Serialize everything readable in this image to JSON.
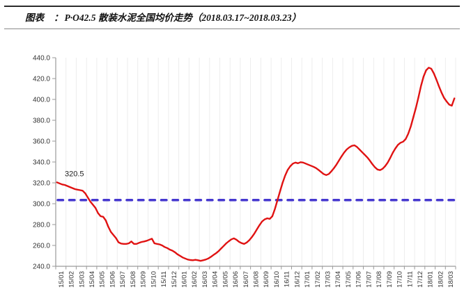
{
  "header": {
    "title_label": "图表",
    "title_separator": "：",
    "title_text": "P·O42.5 散装水泥全国均价走势（2018.03.17~2018.03.23）"
  },
  "chart_data": {
    "type": "line",
    "title": "P·O42.5 散装水泥全国均价走势（2018.03.17~2018.03.23）",
    "xlabel": "",
    "ylabel": "",
    "ylim": [
      240,
      440
    ],
    "ytick_step": 20,
    "ytick_decimals": 1,
    "grid": "vertical-faint",
    "legend": "none",
    "x_categories": [
      "15/01",
      "15/02",
      "15/03",
      "15/04",
      "15/05",
      "15/06",
      "15/07",
      "15/08",
      "15/09",
      "15/10",
      "15/11",
      "15/12",
      "16/01",
      "16/02",
      "16/03",
      "16/04",
      "16/05",
      "16/06",
      "16/07",
      "16/08",
      "16/09",
      "16/10",
      "16/11",
      "16/12",
      "17/01",
      "17/02",
      "17/03",
      "17/04",
      "17/05",
      "17/06",
      "17/07",
      "17/08",
      "17/09",
      "17/10",
      "17/11",
      "17/12",
      "18/01",
      "18/02",
      "18/03"
    ],
    "points_per_category": 4,
    "series": [
      {
        "name": "P·O42.5散装水泥全国均价",
        "color": "#e01212",
        "values": [
          320.5,
          319.5,
          318.5,
          318,
          317,
          316,
          315,
          314,
          313.5,
          313,
          312.5,
          310,
          306,
          302,
          299,
          296,
          291,
          288,
          287.5,
          284,
          278,
          273,
          270,
          267,
          263,
          261.8,
          261.5,
          261.5,
          262,
          263.8,
          261.5,
          261.5,
          262.5,
          263.3,
          263.8,
          264.5,
          265.5,
          266.5,
          262,
          261.5,
          261,
          260,
          258.5,
          257.5,
          256,
          255,
          253.5,
          251.5,
          250,
          248.5,
          247.5,
          246.5,
          246,
          245.8,
          246.2,
          245.8,
          245.2,
          245.8,
          246.5,
          247.5,
          249,
          250.8,
          252.5,
          254.5,
          257,
          259.5,
          262,
          264,
          265.8,
          266.8,
          265.5,
          263.5,
          262.2,
          261.5,
          262.8,
          265,
          268,
          271.5,
          275.5,
          279.5,
          283,
          285,
          286,
          285.5,
          288,
          295,
          303.5,
          312,
          320,
          327,
          332.5,
          336,
          338.5,
          339.5,
          338.8,
          339.8,
          339.5,
          338.5,
          337.5,
          336.5,
          335.5,
          334.2,
          332.5,
          330.5,
          328.5,
          327.5,
          328.5,
          331,
          334,
          337.5,
          341.5,
          345.5,
          349,
          352,
          354,
          355.5,
          356,
          354.5,
          352,
          349.5,
          347,
          344.5,
          341.5,
          338,
          335,
          332.8,
          332.2,
          333.5,
          336,
          339.5,
          344,
          349,
          353,
          356.5,
          358.5,
          359.5,
          362,
          367,
          374,
          383,
          392,
          402,
          413,
          422,
          428,
          430.5,
          429.5,
          425,
          419,
          412.5,
          406.5,
          401.5,
          398,
          395,
          394,
          401
        ]
      }
    ],
    "reference_line": {
      "value": 303.5,
      "color": "#4638cf",
      "style": "dashed"
    },
    "annotation": {
      "text": "320.5",
      "value": 320.5
    },
    "axis_color": "#9a9a9a",
    "gridline_color": "#ededed",
    "tick_label_color": "#333333"
  }
}
